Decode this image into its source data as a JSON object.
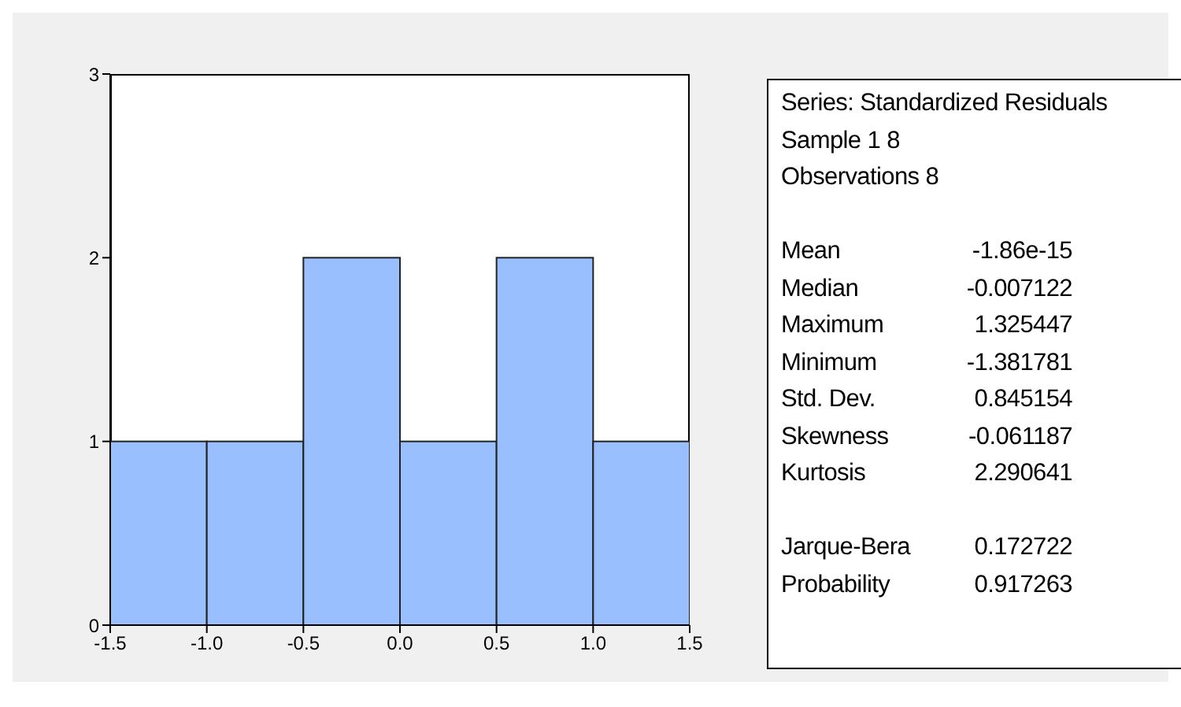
{
  "chart_data": [
    {
      "type": "histogram",
      "bins": [
        -1.5,
        -1.0,
        -0.5,
        0.0,
        0.5,
        1.0,
        1.5
      ],
      "values": [
        1,
        1,
        2,
        1,
        2,
        1
      ],
      "color": "#99bfff",
      "xlim": [
        -1.5,
        1.5
      ],
      "xticks": [
        -1.5,
        {
          "value": -1.0,
          "label": "-1.0"
        },
        -0.5,
        {
          "value": 0.0,
          "label": "0.0"
        },
        0.5,
        {
          "value": 1.0,
          "label": "1.0"
        },
        1.5
      ],
      "ylim": [
        0,
        3
      ],
      "yticks": [
        0,
        1,
        2,
        3
      ],
      "grid": false
    },
    {
      "type": "other",
      "annotations": [
        "Series: Standardized Residuals",
        "Sample 1 8",
        "Observations 8",
        "Mean",
        "-1.86e-15",
        "Median",
        "-0.007122",
        "Maximum",
        "1.325447",
        "Minimum",
        "-1.381781",
        "Std. Dev.",
        "0.845154",
        "Skewness",
        "-0.061187",
        "Kurtosis",
        "2.290641",
        "Jarque-Bera",
        "0.172722",
        "Probability",
        "0.917263"
      ]
    }
  ]
}
